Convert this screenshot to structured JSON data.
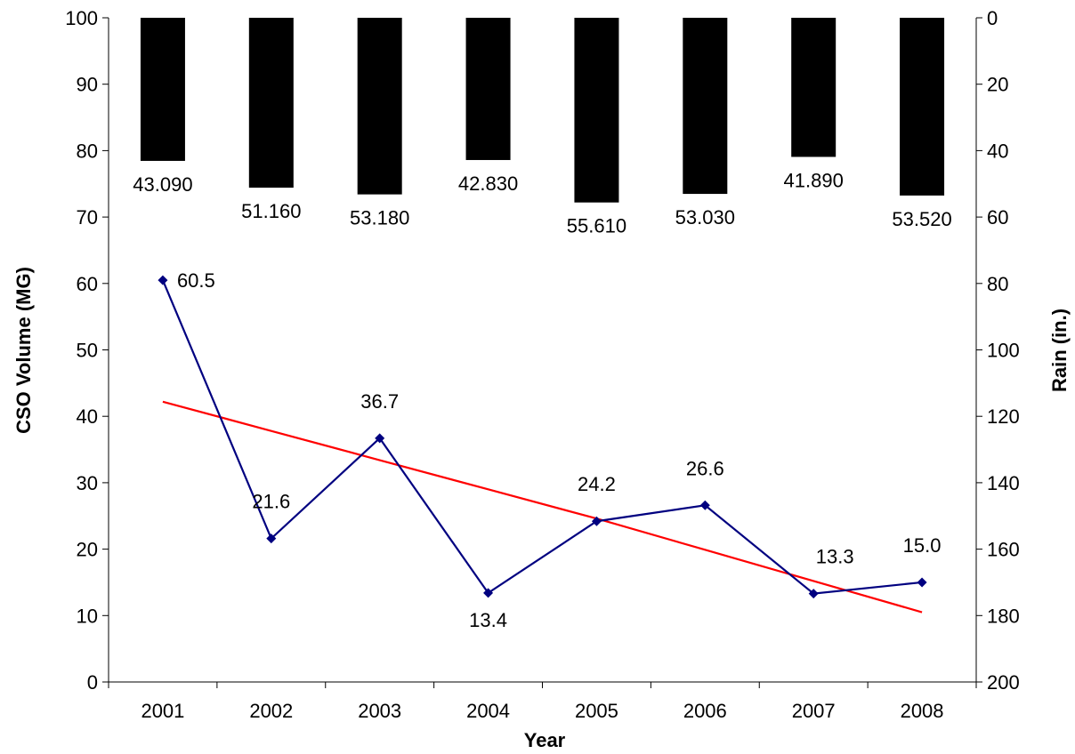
{
  "chart_data": {
    "type": "bar+line",
    "title": "",
    "xlabel": "Year",
    "ylabel_left": "CSO Volume (MG)",
    "ylabel_right": "Rain (in.)",
    "categories": [
      "2001",
      "2002",
      "2003",
      "2004",
      "2005",
      "2006",
      "2007",
      "2008"
    ],
    "left_axis": {
      "ylim": [
        0,
        100
      ],
      "ticks": [
        0,
        10,
        20,
        30,
        40,
        50,
        60,
        70,
        80,
        90,
        100
      ]
    },
    "right_axis": {
      "ylim": [
        0,
        200
      ],
      "reversed": true,
      "ticks": [
        0,
        20,
        40,
        60,
        80,
        100,
        120,
        140,
        160,
        180,
        200
      ]
    },
    "series": [
      {
        "type": "bar",
        "axis": "right",
        "values": [
          43.09,
          51.16,
          53.18,
          42.83,
          55.61,
          53.03,
          41.89,
          53.52
        ],
        "labels": [
          "43.090",
          "51.160",
          "53.180",
          "42.830",
          "55.610",
          "53.030",
          "41.890",
          "53.520"
        ],
        "color": "#000000"
      },
      {
        "type": "line",
        "axis": "left",
        "values": [
          60.5,
          21.6,
          36.7,
          13.4,
          24.2,
          26.6,
          13.3,
          15.0
        ],
        "labels": [
          "60.5",
          "21.6",
          "36.7",
          "13.4",
          "24.2",
          "26.6",
          "13.3",
          "15.0"
        ],
        "color": "#000080",
        "marker": "diamond"
      },
      {
        "type": "trendline",
        "axis": "left",
        "values": [
          42.2,
          37.8,
          33.4,
          29.0,
          24.6,
          19.9,
          15.2,
          10.5
        ],
        "color": "#ff0000"
      }
    ],
    "grid": false,
    "legend": "none"
  }
}
